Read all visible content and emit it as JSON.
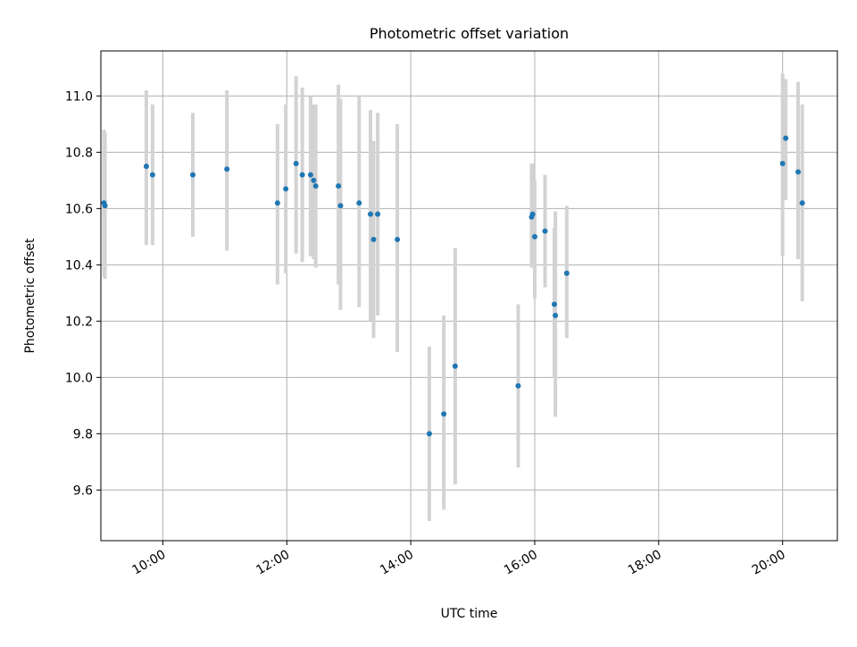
{
  "chart_data": {
    "type": "scatter",
    "title": "Photometric offset variation",
    "xlabel": "UTC time",
    "ylabel": "Photometric offset",
    "xlim": [
      "09:00",
      "20:53"
    ],
    "ylim": [
      9.42,
      11.16
    ],
    "x_ticks": [
      "10:00",
      "12:00",
      "14:00",
      "16:00",
      "18:00",
      "20:00"
    ],
    "y_ticks": [
      "9.6",
      "9.8",
      "10.0",
      "10.2",
      "10.4",
      "10.6",
      "10.8",
      "11.0"
    ],
    "grid": true,
    "colors": {
      "point": "#1f77b4",
      "errorbar": "#d3d3d3",
      "grid": "#b0b0b0"
    },
    "points": [
      {
        "x": "09:03",
        "y": 10.62,
        "ymin": 10.36,
        "ymax": 10.88
      },
      {
        "x": "09:04",
        "y": 10.61,
        "ymin": 10.35,
        "ymax": 10.87
      },
      {
        "x": "09:44",
        "y": 10.75,
        "ymin": 10.47,
        "ymax": 11.02
      },
      {
        "x": "09:50",
        "y": 10.72,
        "ymin": 10.47,
        "ymax": 10.97
      },
      {
        "x": "10:29",
        "y": 10.72,
        "ymin": 10.5,
        "ymax": 10.94
      },
      {
        "x": "11:02",
        "y": 10.74,
        "ymin": 10.45,
        "ymax": 11.02
      },
      {
        "x": "11:51",
        "y": 10.62,
        "ymin": 10.33,
        "ymax": 10.9
      },
      {
        "x": "11:59",
        "y": 10.67,
        "ymin": 10.37,
        "ymax": 10.97
      },
      {
        "x": "12:09",
        "y": 10.76,
        "ymin": 10.44,
        "ymax": 11.07
      },
      {
        "x": "12:15",
        "y": 10.72,
        "ymin": 10.41,
        "ymax": 11.03
      },
      {
        "x": "12:23",
        "y": 10.72,
        "ymin": 10.43,
        "ymax": 11.0
      },
      {
        "x": "12:26",
        "y": 10.7,
        "ymin": 10.42,
        "ymax": 10.97
      },
      {
        "x": "12:28",
        "y": 10.68,
        "ymin": 10.39,
        "ymax": 10.97
      },
      {
        "x": "12:50",
        "y": 10.68,
        "ymin": 10.33,
        "ymax": 11.04
      },
      {
        "x": "12:52",
        "y": 10.61,
        "ymin": 10.24,
        "ymax": 10.99
      },
      {
        "x": "13:10",
        "y": 10.62,
        "ymin": 10.25,
        "ymax": 11.0
      },
      {
        "x": "13:21",
        "y": 10.58,
        "ymin": 10.2,
        "ymax": 10.95
      },
      {
        "x": "13:24",
        "y": 10.49,
        "ymin": 10.14,
        "ymax": 10.84
      },
      {
        "x": "13:28",
        "y": 10.58,
        "ymin": 10.22,
        "ymax": 10.94
      },
      {
        "x": "13:47",
        "y": 10.49,
        "ymin": 10.09,
        "ymax": 10.9
      },
      {
        "x": "14:18",
        "y": 9.8,
        "ymin": 9.49,
        "ymax": 10.11
      },
      {
        "x": "14:32",
        "y": 9.87,
        "ymin": 9.53,
        "ymax": 10.22
      },
      {
        "x": "14:43",
        "y": 10.04,
        "ymin": 9.62,
        "ymax": 10.46
      },
      {
        "x": "15:44",
        "y": 9.97,
        "ymin": 9.68,
        "ymax": 10.26
      },
      {
        "x": "15:57",
        "y": 10.57,
        "ymin": 10.39,
        "ymax": 10.76
      },
      {
        "x": "15:58",
        "y": 10.58,
        "ymin": 10.4,
        "ymax": 10.76
      },
      {
        "x": "16:00",
        "y": 10.5,
        "ymin": 10.28,
        "ymax": 10.7
      },
      {
        "x": "16:10",
        "y": 10.52,
        "ymin": 10.32,
        "ymax": 10.72
      },
      {
        "x": "16:19",
        "y": 10.26,
        "ymin": 10.0,
        "ymax": 10.53
      },
      {
        "x": "16:20",
        "y": 10.22,
        "ymin": 9.86,
        "ymax": 10.59
      },
      {
        "x": "16:31",
        "y": 10.37,
        "ymin": 10.14,
        "ymax": 10.61
      },
      {
        "x": "20:00",
        "y": 10.76,
        "ymin": 10.43,
        "ymax": 11.08
      },
      {
        "x": "20:03",
        "y": 10.85,
        "ymin": 10.63,
        "ymax": 11.06
      },
      {
        "x": "20:15",
        "y": 10.73,
        "ymin": 10.42,
        "ymax": 11.05
      },
      {
        "x": "20:19",
        "y": 10.62,
        "ymin": 10.27,
        "ymax": 10.97
      }
    ]
  }
}
